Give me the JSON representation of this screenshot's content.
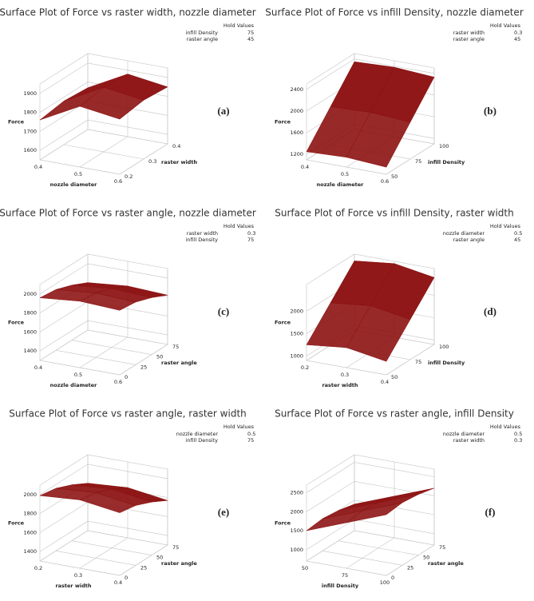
{
  "chart_data": [
    {
      "type": "surface",
      "title": "Surface Plot of Force vs raster width, nozzle diameter",
      "hold_title": "Hold Values",
      "hold_values": [
        {
          "name": "infill Density",
          "value": 75
        },
        {
          "name": "raster angle",
          "value": 45
        }
      ],
      "xlabel": "nozzle diameter",
      "ylabel": "raster width",
      "zlabel": "Force",
      "panel_label": "(a)",
      "color": "#8b0f0f",
      "xlim": [
        0.4,
        0.6
      ],
      "xticks": [
        0.4,
        0.5,
        0.6
      ],
      "ylim": [
        0.2,
        0.4
      ],
      "yticks": [
        0.2,
        0.3,
        0.4
      ],
      "zlim": [
        1550,
        1950
      ],
      "zticks": [
        1600,
        1700,
        1800,
        1900
      ],
      "z": [
        [
          1760,
          1870,
          1840
        ],
        [
          1780,
          1890,
          1860
        ],
        [
          1770,
          1880,
          1850
        ]
      ]
    },
    {
      "type": "surface",
      "title": "Surface Plot of Force vs infill Density, nozzle diameter",
      "hold_title": "Hold Values",
      "hold_values": [
        {
          "name": "raster width",
          "value": 0.3
        },
        {
          "name": "raster angle",
          "value": 45
        }
      ],
      "xlabel": "nozzle diameter",
      "ylabel": "infill Density",
      "zlabel": "Force",
      "panel_label": "(b)",
      "color": "#8b0f0f",
      "xlim": [
        0.4,
        0.6
      ],
      "xticks": [
        0.4,
        0.5,
        0.6
      ],
      "ylim": [
        50,
        100
      ],
      "yticks": [
        50,
        75,
        100
      ],
      "zlim": [
        1100,
        2500
      ],
      "zticks": [
        1200,
        1600,
        2000,
        2400
      ],
      "z": [
        [
          1250,
          1280,
          1230
        ],
        [
          1800,
          1830,
          1780
        ],
        [
          2350,
          2380,
          2330
        ]
      ]
    },
    {
      "type": "surface",
      "title": "Surface Plot of Force vs raster angle, nozzle diameter",
      "hold_title": "Hold Values",
      "hold_values": [
        {
          "name": "raster width",
          "value": 0.3
        },
        {
          "name": "infill Density",
          "value": 75
        }
      ],
      "xlabel": "nozzle diameter",
      "ylabel": "raster angle",
      "zlabel": "Force",
      "panel_label": "(c)",
      "color": "#8b0f0f",
      "xlim": [
        0.4,
        0.6
      ],
      "xticks": [
        0.4,
        0.5,
        0.6
      ],
      "ylim": [
        0,
        75
      ],
      "yticks": [
        0,
        25,
        50,
        75
      ],
      "zlim": [
        1300,
        2100
      ],
      "zticks": [
        1400,
        1600,
        1800,
        2000
      ],
      "z": [
        [
          1960,
          2000,
          1980
        ],
        [
          1940,
          1980,
          1960
        ],
        [
          1880,
          1920,
          1900
        ],
        [
          1800,
          1840,
          1820
        ]
      ]
    },
    {
      "type": "surface",
      "title": "Surface Plot of Force vs infill Density, raster width",
      "hold_title": "Hold Values",
      "hold_values": [
        {
          "name": "nozzle diameter",
          "value": 0.5
        },
        {
          "name": "raster angle",
          "value": 45
        }
      ],
      "xlabel": "raster width",
      "ylabel": "infill Density",
      "zlabel": "Force",
      "panel_label": "(d)",
      "color": "#8b0f0f",
      "xlim": [
        0.2,
        0.4
      ],
      "xticks": [
        0.2,
        0.3,
        0.4
      ],
      "ylim": [
        50,
        100
      ],
      "yticks": [
        50,
        75,
        100
      ],
      "zlim": [
        900,
        2600
      ],
      "zticks": [
        1000,
        1500,
        2000
      ],
      "z": [
        [
          1250,
          1350,
          1200
        ],
        [
          1850,
          1950,
          1800
        ],
        [
          2450,
          2550,
          2400
        ]
      ]
    },
    {
      "type": "surface",
      "title": "Surface Plot of Force vs raster angle, raster width",
      "hold_title": "Hold Values",
      "hold_values": [
        {
          "name": "nozzle diameter",
          "value": 0.5
        },
        {
          "name": "infill Density",
          "value": 75
        }
      ],
      "xlabel": "raster width",
      "ylabel": "raster angle",
      "zlabel": "Force",
      "panel_label": "(e)",
      "color": "#8b0f0f",
      "xlim": [
        0.2,
        0.4
      ],
      "xticks": [
        0.2,
        0.3,
        0.4
      ],
      "ylim": [
        0,
        75
      ],
      "yticks": [
        0,
        25,
        50,
        75
      ],
      "zlim": [
        1300,
        2100
      ],
      "zticks": [
        1400,
        1600,
        1800,
        2000
      ],
      "z": [
        [
          1990,
          2020,
          1960
        ],
        [
          1960,
          1990,
          1930
        ],
        [
          1890,
          1920,
          1860
        ],
        [
          1800,
          1830,
          1770
        ]
      ]
    },
    {
      "type": "surface",
      "title": "Surface Plot of Force vs raster angle, infill Density",
      "hold_title": "Hold Values",
      "hold_values": [
        {
          "name": "nozzle diameter",
          "value": 0.5
        },
        {
          "name": "raster width",
          "value": 0.3
        }
      ],
      "xlabel": "infill Density",
      "ylabel": "raster angle",
      "zlabel": "Force",
      "panel_label": "(f)",
      "color": "#8b0f0f",
      "xlim": [
        50,
        100
      ],
      "xticks": [
        50,
        75,
        100
      ],
      "ylim": [
        0,
        75
      ],
      "yticks": [
        0,
        25,
        50,
        75
      ],
      "zlim": [
        700,
        2700
      ],
      "zticks": [
        1000,
        1500,
        2000,
        2500
      ],
      "z": [
        [
          1500,
          1900,
          2300
        ],
        [
          1550,
          1950,
          2350
        ],
        [
          1500,
          1900,
          2300
        ],
        [
          1400,
          1800,
          2200
        ]
      ]
    }
  ]
}
